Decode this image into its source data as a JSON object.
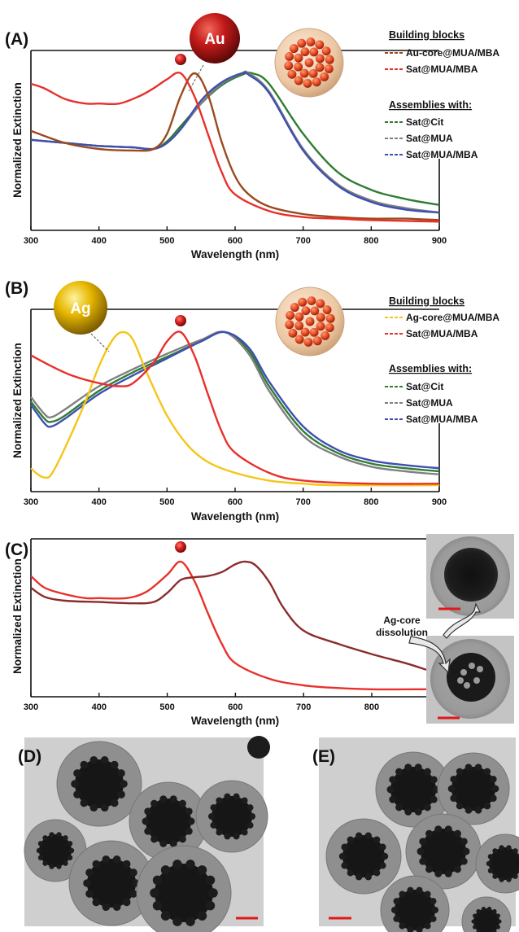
{
  "figure": {
    "panels": [
      "(A)",
      "(B)",
      "(C)",
      "(D)",
      "(E)"
    ],
    "particle_labels": {
      "gold": "Au",
      "silver": "Ag"
    },
    "annotation": [
      "Ag-core",
      "dissolution"
    ]
  },
  "colors": {
    "au_core": "#9a4a1e",
    "ag_core": "#f5c518",
    "sat_mua_mba": "#e8302a",
    "assembly_cit": "#2e7d32",
    "assembly_mua": "#808080",
    "assembly_mua_mba": "#3f4fb0",
    "panel_c_assembly": "#8b2c2c"
  },
  "chart_data": [
    {
      "type": "line",
      "panel": "(A)",
      "xlabel": "Wavelength (nm)",
      "ylabel": "Normalized Extinction",
      "xlim": [
        300,
        900
      ],
      "xticks": [
        "300",
        "400",
        "500",
        "600",
        "700",
        "800",
        "900"
      ],
      "legend": {
        "headers": [
          "Building blocks",
          "Assemblies with:"
        ],
        "placement": "top-right"
      },
      "series": [
        {
          "name": "Au-core@MUA/MBA",
          "group": "Building blocks",
          "color": "#9a4a1e",
          "x": [
            300,
            350,
            400,
            450,
            480,
            500,
            520,
            540,
            560,
            580,
            600,
            620,
            650,
            700,
            750,
            800,
            850,
            900
          ],
          "y": [
            0.62,
            0.54,
            0.5,
            0.49,
            0.5,
            0.6,
            0.85,
            1.0,
            0.86,
            0.55,
            0.32,
            0.2,
            0.12,
            0.07,
            0.05,
            0.04,
            0.04,
            0.03
          ]
        },
        {
          "name": "Sat@MUA/MBA",
          "group": "Building blocks",
          "color": "#e8302a",
          "x": [
            300,
            320,
            350,
            380,
            400,
            430,
            460,
            480,
            500,
            520,
            540,
            560,
            580,
            600,
            650,
            700,
            750,
            800,
            900
          ],
          "y": [
            0.93,
            0.9,
            0.83,
            0.8,
            0.8,
            0.8,
            0.85,
            0.9,
            0.96,
            1.0,
            0.85,
            0.6,
            0.35,
            0.2,
            0.09,
            0.05,
            0.04,
            0.03,
            0.02
          ]
        },
        {
          "name": "Sat@Cit",
          "group": "Assemblies with:",
          "color": "#2e7d32",
          "x": [
            300,
            350,
            400,
            450,
            480,
            500,
            520,
            550,
            580,
            610,
            625,
            650,
            700,
            750,
            800,
            850,
            900
          ],
          "y": [
            0.56,
            0.54,
            0.52,
            0.51,
            0.5,
            0.55,
            0.65,
            0.8,
            0.92,
            0.99,
            1.0,
            0.93,
            0.6,
            0.35,
            0.23,
            0.17,
            0.13
          ]
        },
        {
          "name": "Sat@MUA",
          "group": "Assemblies with:",
          "color": "#808080",
          "x": [
            300,
            350,
            400,
            450,
            480,
            500,
            520,
            550,
            580,
            610,
            620,
            650,
            700,
            750,
            800,
            850,
            900
          ],
          "y": [
            0.56,
            0.54,
            0.52,
            0.51,
            0.5,
            0.54,
            0.63,
            0.8,
            0.93,
            1.0,
            1.0,
            0.88,
            0.5,
            0.27,
            0.16,
            0.11,
            0.08
          ]
        },
        {
          "name": "Sat@MUA/MBA",
          "group": "Assemblies with:",
          "color": "#3f4fb0",
          "x": [
            300,
            350,
            400,
            450,
            480,
            500,
            520,
            550,
            580,
            610,
            620,
            650,
            700,
            750,
            800,
            850,
            900
          ],
          "y": [
            0.56,
            0.54,
            0.52,
            0.51,
            0.5,
            0.54,
            0.63,
            0.82,
            0.94,
            1.0,
            0.99,
            0.87,
            0.49,
            0.26,
            0.15,
            0.1,
            0.08
          ]
        }
      ]
    },
    {
      "type": "line",
      "panel": "(B)",
      "xlabel": "Wavelength (nm)",
      "ylabel": "Normalized Extinction",
      "xlim": [
        300,
        900
      ],
      "xticks": [
        "300",
        "400",
        "500",
        "600",
        "700",
        "800",
        "900"
      ],
      "legend": {
        "headers": [
          "Building blocks",
          "Assemblies with:"
        ],
        "placement": "top-right"
      },
      "series": [
        {
          "name": "Ag-core@MUA/MBA",
          "group": "Building blocks",
          "color": "#f5c518",
          "x": [
            300,
            310,
            320,
            330,
            350,
            380,
            400,
            420,
            435,
            450,
            470,
            500,
            530,
            560,
            600,
            650,
            700,
            750,
            900
          ],
          "y": [
            0.12,
            0.08,
            0.06,
            0.08,
            0.25,
            0.55,
            0.78,
            0.95,
            1.0,
            0.95,
            0.74,
            0.46,
            0.27,
            0.16,
            0.09,
            0.04,
            0.02,
            0.01,
            0.01
          ]
        },
        {
          "name": "Sat@MUA/MBA",
          "group": "Building blocks",
          "color": "#e8302a",
          "x": [
            300,
            330,
            360,
            400,
            430,
            450,
            480,
            500,
            520,
            540,
            560,
            580,
            600,
            650,
            700,
            800,
            900
          ],
          "y": [
            0.85,
            0.78,
            0.72,
            0.67,
            0.65,
            0.67,
            0.8,
            0.94,
            1.0,
            0.85,
            0.6,
            0.36,
            0.22,
            0.09,
            0.04,
            0.02,
            0.02
          ]
        },
        {
          "name": "Sat@Cit",
          "group": "Assemblies with:",
          "color": "#2e7d32",
          "x": [
            300,
            320,
            330,
            350,
            400,
            450,
            500,
            550,
            585,
            620,
            650,
            700,
            750,
            800,
            850,
            900
          ],
          "y": [
            0.55,
            0.44,
            0.42,
            0.46,
            0.62,
            0.74,
            0.84,
            0.94,
            1.0,
            0.88,
            0.65,
            0.36,
            0.22,
            0.15,
            0.12,
            0.1
          ]
        },
        {
          "name": "Sat@MUA",
          "group": "Assemblies with:",
          "color": "#808080",
          "x": [
            300,
            320,
            330,
            350,
            400,
            450,
            500,
            550,
            585,
            620,
            650,
            700,
            750,
            800,
            850,
            900
          ],
          "y": [
            0.58,
            0.47,
            0.45,
            0.5,
            0.65,
            0.76,
            0.86,
            0.95,
            1.0,
            0.86,
            0.62,
            0.33,
            0.2,
            0.13,
            0.1,
            0.08
          ]
        },
        {
          "name": "Sat@MUA/MBA",
          "group": "Assemblies with:",
          "color": "#3f4fb0",
          "x": [
            300,
            320,
            330,
            350,
            400,
            450,
            500,
            550,
            585,
            620,
            650,
            700,
            750,
            800,
            850,
            900
          ],
          "y": [
            0.53,
            0.41,
            0.39,
            0.44,
            0.6,
            0.72,
            0.83,
            0.94,
            1.0,
            0.9,
            0.68,
            0.39,
            0.24,
            0.17,
            0.14,
            0.12
          ]
        }
      ]
    },
    {
      "type": "line",
      "panel": "(C)",
      "xlabel": "Wavelength (nm)",
      "ylabel": "Normalized Extinction",
      "xlim": [
        300,
        880
      ],
      "xticks": [
        "300",
        "400",
        "500",
        "600",
        "700",
        "800"
      ],
      "series": [
        {
          "color": "#e8302a",
          "x": [
            300,
            320,
            350,
            380,
            400,
            440,
            470,
            500,
            520,
            540,
            560,
            580,
            600,
            650,
            700,
            750,
            800,
            880
          ],
          "y": [
            0.89,
            0.8,
            0.75,
            0.72,
            0.72,
            0.72,
            0.77,
            0.9,
            1.0,
            0.85,
            0.6,
            0.37,
            0.22,
            0.1,
            0.05,
            0.03,
            0.02,
            0.02
          ]
        },
        {
          "color": "#8b2c2c",
          "x": [
            300,
            320,
            350,
            400,
            450,
            480,
            500,
            520,
            540,
            560,
            580,
            600,
            615,
            630,
            650,
            670,
            700,
            750,
            800,
            850,
            880
          ],
          "y": [
            0.8,
            0.73,
            0.7,
            0.69,
            0.68,
            0.69,
            0.76,
            0.86,
            0.88,
            0.89,
            0.92,
            0.98,
            1.0,
            0.97,
            0.84,
            0.65,
            0.47,
            0.37,
            0.29,
            0.22,
            0.17
          ]
        }
      ]
    }
  ]
}
